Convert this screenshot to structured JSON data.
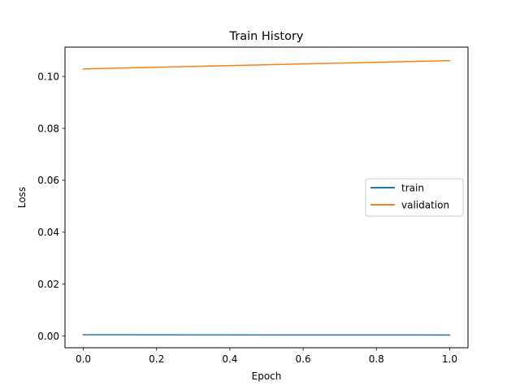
{
  "chart_data": {
    "type": "line",
    "title": "Train History",
    "xlabel": "Epoch",
    "ylabel": "Loss",
    "xlim": [
      -0.05,
      1.05
    ],
    "ylim": [
      -0.0045,
      0.1113
    ],
    "x_ticks": [
      0.0,
      0.2,
      0.4,
      0.6,
      0.8,
      1.0
    ],
    "x_tick_labels": [
      "0.0",
      "0.2",
      "0.4",
      "0.6",
      "0.8",
      "1.0"
    ],
    "y_ticks": [
      0.0,
      0.02,
      0.04,
      0.06,
      0.08,
      0.1
    ],
    "y_tick_labels": [
      "0.00",
      "0.02",
      "0.04",
      "0.06",
      "0.08",
      "0.10"
    ],
    "grid": false,
    "legend_position": "center-right",
    "x": [
      0,
      1
    ],
    "series": [
      {
        "name": "train",
        "color": "#1f77b4",
        "values": [
          0.0005,
          0.0004
        ]
      },
      {
        "name": "validation",
        "color": "#ff7f0e",
        "values": [
          0.1029,
          0.1061
        ]
      }
    ]
  }
}
